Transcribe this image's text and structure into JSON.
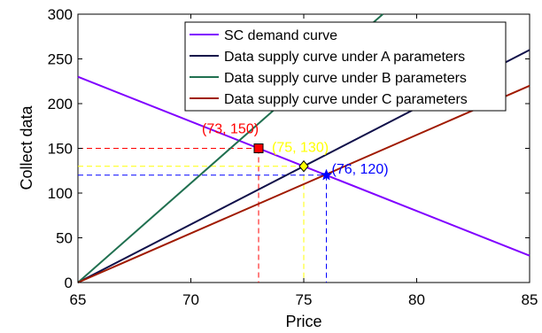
{
  "chart_data": {
    "type": "line",
    "title": "",
    "xlabel": "Price",
    "ylabel": "Collect data",
    "xlim": [
      65,
      85
    ],
    "ylim": [
      0,
      300
    ],
    "xticks": [
      65,
      70,
      75,
      80,
      85
    ],
    "yticks": [
      0,
      50,
      100,
      150,
      200,
      250,
      300
    ],
    "xtick_labels": [
      "65",
      "70",
      "75",
      "80",
      "85"
    ],
    "ytick_labels": [
      "0",
      "50",
      "100",
      "150",
      "200",
      "250",
      "300"
    ],
    "grid": false,
    "legend_position": "top-right",
    "series": [
      {
        "name": "SC demand curve",
        "color": "#8000ff",
        "x": [
          65,
          85
        ],
        "y": [
          230,
          30
        ]
      },
      {
        "name": "Data supply curve under A parameters",
        "color": "#10104a",
        "x": [
          65,
          85
        ],
        "y": [
          0,
          260
        ]
      },
      {
        "name": "Data supply curve under B parameters",
        "color": "#207050",
        "x": [
          65,
          78.5
        ],
        "y": [
          0,
          300
        ]
      },
      {
        "name": "Data supply curve under C parameters",
        "color": "#a01a00",
        "x": [
          65,
          85
        ],
        "y": [
          0,
          220
        ]
      }
    ],
    "annotations": [
      {
        "label": "(73, 150)",
        "x": 73,
        "y": 150,
        "color": "#ff0000",
        "marker": "square"
      },
      {
        "label": "(75, 130)",
        "x": 75,
        "y": 130,
        "color": "#ffff00",
        "marker": "diamond"
      },
      {
        "label": "(76, 120)",
        "x": 76,
        "y": 120,
        "color": "#0000ff",
        "marker": "star"
      }
    ]
  }
}
